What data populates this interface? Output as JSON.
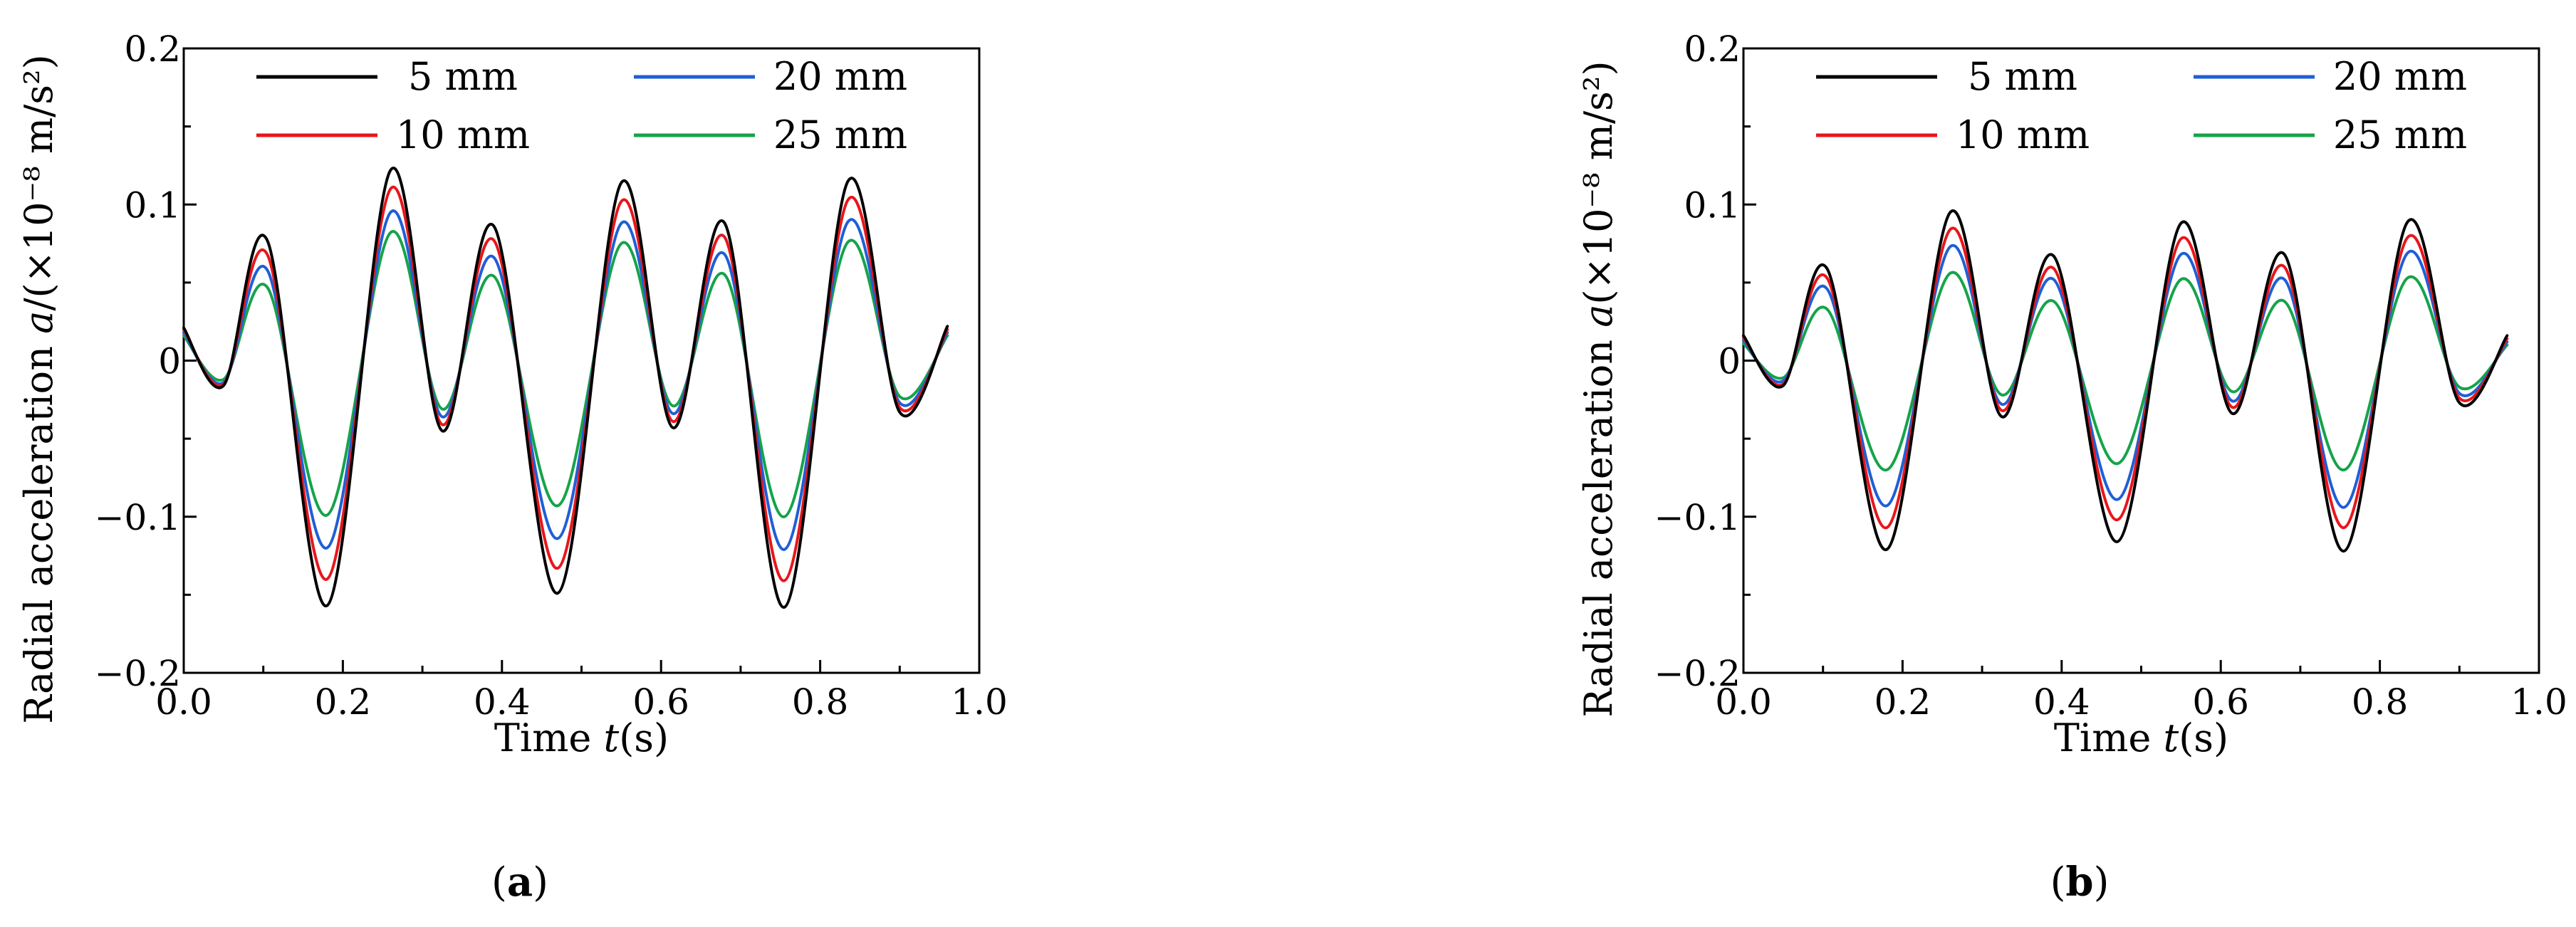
{
  "chart_data": [
    {
      "type": "line",
      "panel_label": {
        "open": "(",
        "letter": "a",
        "close": ")"
      },
      "xlabel": {
        "prefix": "Time ",
        "var": "t",
        "suffix": "(s)"
      },
      "ylabel": {
        "prefix": "Radial acceleration ",
        "var": "a",
        "unit": "/(×10⁻⁸ m/s²)"
      },
      "xlim": [
        0.0,
        1.0
      ],
      "ylim": [
        -0.2,
        0.2
      ],
      "xticks": [
        "0.0",
        "0.2",
        "0.4",
        "0.6",
        "0.8",
        "1.0"
      ],
      "yticks": [
        "−0.2",
        "−0.1",
        "0",
        "0.1",
        "0.2"
      ],
      "legend_position": "top",
      "x": [
        0.0,
        0.05,
        0.105,
        0.18,
        0.26,
        0.325,
        0.39,
        0.47,
        0.55,
        0.615,
        0.68,
        0.755,
        0.835,
        0.9,
        0.96
      ],
      "series": [
        {
          "name": "5 mm",
          "color": "#000000",
          "values": [
            0.021,
            -0.016,
            0.077,
            -0.157,
            0.122,
            -0.045,
            0.086,
            -0.149,
            0.114,
            -0.043,
            0.088,
            -0.158,
            0.115,
            -0.033,
            0.022
          ]
        },
        {
          "name": "10 mm",
          "color": "#e8161b",
          "values": [
            0.02,
            -0.015,
            0.068,
            -0.14,
            0.11,
            -0.041,
            0.077,
            -0.133,
            0.102,
            -0.039,
            0.079,
            -0.141,
            0.103,
            -0.03,
            0.02
          ]
        },
        {
          "name": "20 mm",
          "color": "#1f5fd6",
          "values": [
            0.018,
            -0.014,
            0.058,
            -0.12,
            0.095,
            -0.036,
            0.066,
            -0.114,
            0.088,
            -0.034,
            0.068,
            -0.121,
            0.089,
            -0.027,
            0.018
          ]
        },
        {
          "name": "25 mm",
          "color": "#16a34a",
          "values": [
            0.016,
            -0.012,
            0.047,
            -0.099,
            0.082,
            -0.031,
            0.054,
            -0.093,
            0.075,
            -0.029,
            0.055,
            -0.1,
            0.076,
            -0.023,
            0.016
          ]
        }
      ]
    },
    {
      "type": "line",
      "panel_label": {
        "open": "(",
        "letter": "b",
        "close": ")"
      },
      "xlabel": {
        "prefix": "Time ",
        "var": "t",
        "suffix": "(s)"
      },
      "ylabel": {
        "prefix": "Radial acceleration ",
        "var": "a",
        "unit": "(×10⁻⁸ m/s²)"
      },
      "xlim": [
        0.0,
        1.0
      ],
      "ylim": [
        -0.2,
        0.2
      ],
      "xticks": [
        "0.0",
        "0.2",
        "0.4",
        "0.6",
        "0.8",
        "1.0"
      ],
      "yticks": [
        "−0.2",
        "−0.1",
        "0",
        "0.1",
        "0.2"
      ],
      "legend_position": "top",
      "x": [
        0.0,
        0.05,
        0.105,
        0.18,
        0.26,
        0.325,
        0.39,
        0.47,
        0.55,
        0.615,
        0.68,
        0.755,
        0.835,
        0.9,
        0.96
      ],
      "series": [
        {
          "name": "5 mm",
          "color": "#000000",
          "values": [
            0.016,
            -0.016,
            0.059,
            -0.121,
            0.095,
            -0.036,
            0.067,
            -0.116,
            0.088,
            -0.034,
            0.068,
            -0.122,
            0.089,
            -0.027,
            0.016
          ]
        },
        {
          "name": "10 mm",
          "color": "#e8161b",
          "values": [
            0.015,
            -0.015,
            0.053,
            -0.107,
            0.084,
            -0.032,
            0.059,
            -0.102,
            0.078,
            -0.03,
            0.06,
            -0.107,
            0.079,
            -0.024,
            0.014
          ]
        },
        {
          "name": "20 mm",
          "color": "#1f5fd6",
          "values": [
            0.013,
            -0.013,
            0.046,
            -0.093,
            0.073,
            -0.028,
            0.052,
            -0.089,
            0.068,
            -0.026,
            0.052,
            -0.094,
            0.069,
            -0.021,
            0.012
          ]
        },
        {
          "name": "25 mm",
          "color": "#16a34a",
          "values": [
            0.011,
            -0.011,
            0.033,
            -0.07,
            0.056,
            -0.022,
            0.038,
            -0.066,
            0.052,
            -0.02,
            0.038,
            -0.07,
            0.053,
            -0.017,
            0.01
          ]
        }
      ]
    }
  ]
}
